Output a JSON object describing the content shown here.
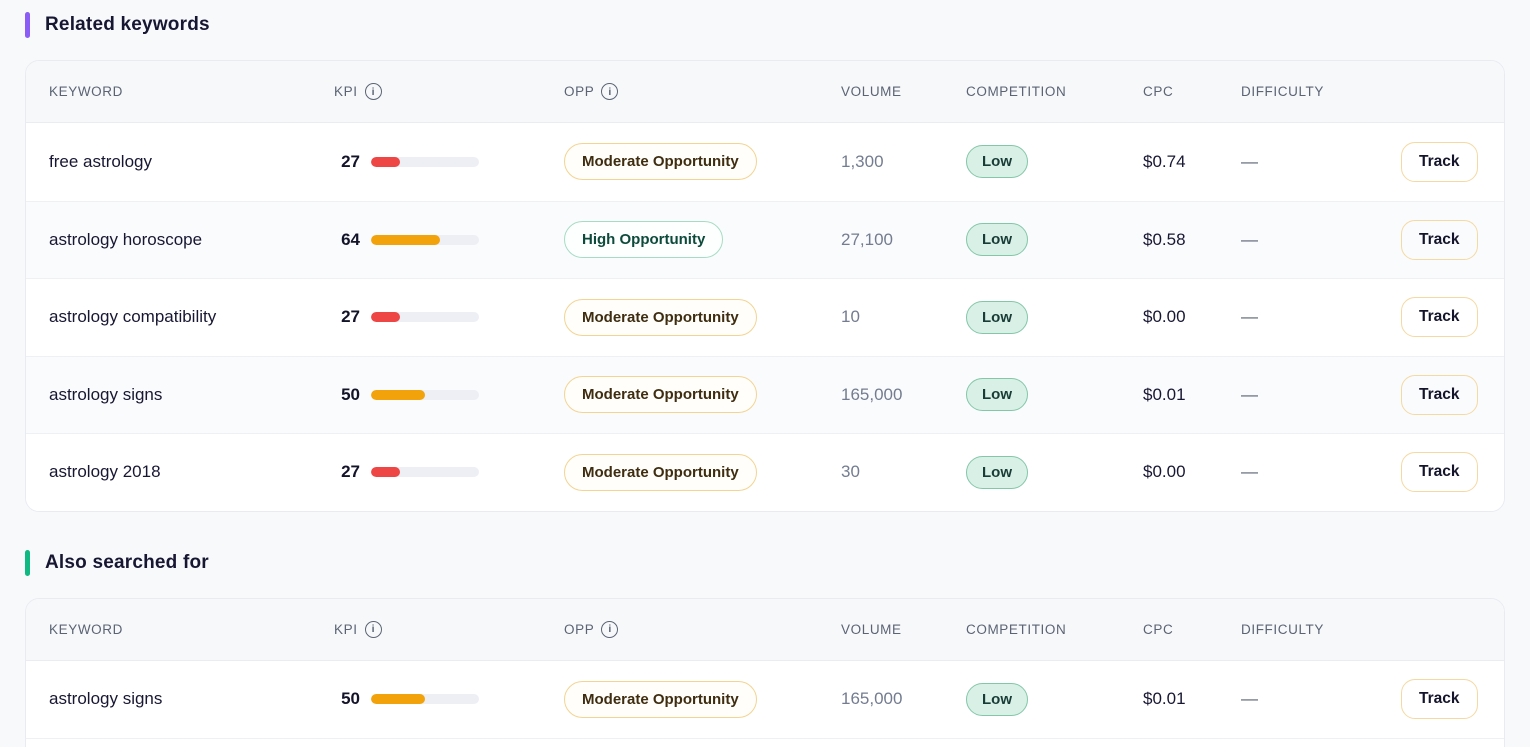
{
  "labels": {
    "track": "Track",
    "info": "i"
  },
  "columns": {
    "keyword": "KEYWORD",
    "kpi": "KPI",
    "opp": "OPP",
    "volume": "VOLUME",
    "competition": "COMPETITION",
    "cpc": "CPC",
    "difficulty": "DIFFICULTY"
  },
  "colors": {
    "related_accent": "#8b5cf6",
    "also_accent": "#10b981",
    "kpi_red": "#ee4545",
    "kpi_orange": "#f2a30c"
  },
  "sections": [
    {
      "title": "Related keywords",
      "accent": "#8b5cf6",
      "rows": [
        {
          "keyword": "free astrology",
          "kpi": 27,
          "kpi_color": "#ee4545",
          "opp": "Moderate Opportunity",
          "opp_type": "moderate",
          "volume": "1,300",
          "competition": "Low",
          "cpc": "$0.74",
          "difficulty": "—"
        },
        {
          "keyword": "astrology horoscope",
          "kpi": 64,
          "kpi_color": "#f2a30c",
          "opp": "High Opportunity",
          "opp_type": "high",
          "volume": "27,100",
          "competition": "Low",
          "cpc": "$0.58",
          "difficulty": "—"
        },
        {
          "keyword": "astrology compatibility",
          "kpi": 27,
          "kpi_color": "#ee4545",
          "opp": "Moderate Opportunity",
          "opp_type": "moderate",
          "volume": "10",
          "competition": "Low",
          "cpc": "$0.00",
          "difficulty": "—"
        },
        {
          "keyword": "astrology signs",
          "kpi": 50,
          "kpi_color": "#f2a30c",
          "opp": "Moderate Opportunity",
          "opp_type": "moderate",
          "volume": "165,000",
          "competition": "Low",
          "cpc": "$0.01",
          "difficulty": "—"
        },
        {
          "keyword": "astrology 2018",
          "kpi": 27,
          "kpi_color": "#ee4545",
          "opp": "Moderate Opportunity",
          "opp_type": "moderate",
          "volume": "30",
          "competition": "Low",
          "cpc": "$0.00",
          "difficulty": "—"
        }
      ]
    },
    {
      "title": "Also searched for",
      "accent": "#10b981",
      "rows": [
        {
          "keyword": "astrology signs",
          "kpi": 50,
          "kpi_color": "#f2a30c",
          "opp": "Moderate Opportunity",
          "opp_type": "moderate",
          "volume": "165,000",
          "competition": "Low",
          "cpc": "$0.01",
          "difficulty": "—"
        }
      ]
    }
  ]
}
